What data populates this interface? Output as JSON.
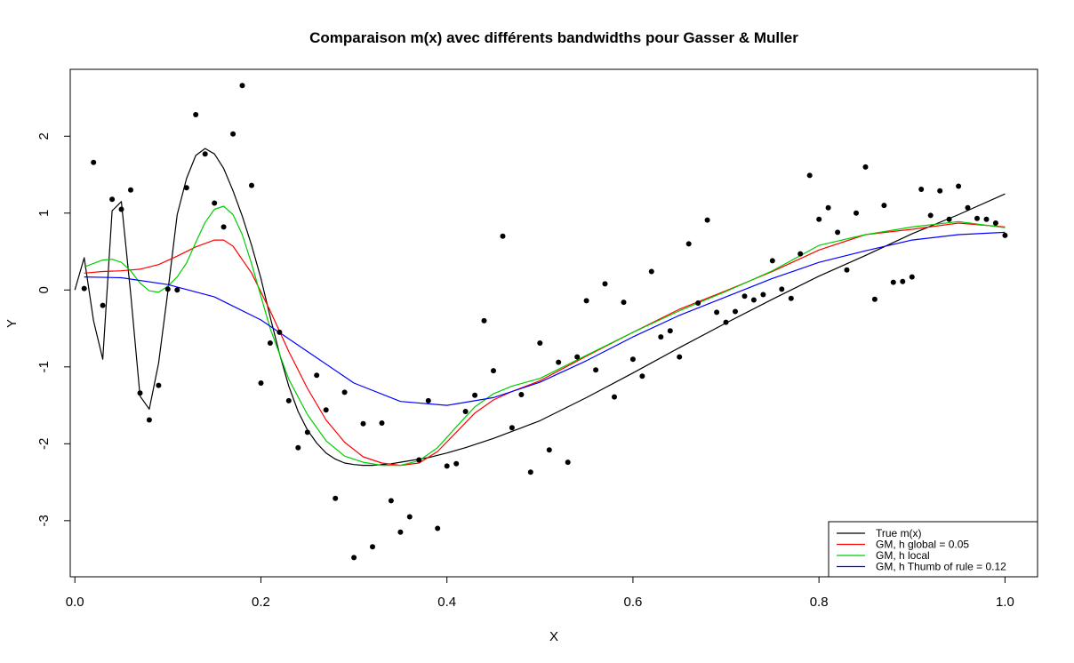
{
  "chart_data": {
    "type": "scatter",
    "title": "Comparaison m(x) avec différents bandwidths pour Gasser & Muller",
    "xlabel": "X",
    "ylabel": "Y",
    "xlim": [
      -0.005,
      1.035
    ],
    "ylim": [
      -3.73,
      2.87
    ],
    "xticks": [
      0.0,
      0.2,
      0.4,
      0.6,
      0.8,
      1.0
    ],
    "xtick_labels": [
      "0.0",
      "0.2",
      "0.4",
      "0.6",
      "0.8",
      "1.0"
    ],
    "yticks": [
      -3,
      -2,
      -1,
      0,
      1,
      2
    ],
    "ytick_labels": [
      "-3",
      "-2",
      "-1",
      "0",
      "1",
      "2"
    ],
    "grid": false,
    "legend_position": "bottom-right",
    "points": {
      "x": [
        0.01,
        0.02,
        0.03,
        0.04,
        0.05,
        0.06,
        0.07,
        0.08,
        0.09,
        0.1,
        0.11,
        0.12,
        0.13,
        0.14,
        0.15,
        0.16,
        0.17,
        0.18,
        0.19,
        0.2,
        0.21,
        0.22,
        0.23,
        0.24,
        0.25,
        0.26,
        0.27,
        0.28,
        0.29,
        0.3,
        0.31,
        0.32,
        0.33,
        0.34,
        0.35,
        0.36,
        0.37,
        0.38,
        0.39,
        0.4,
        0.41,
        0.42,
        0.43,
        0.44,
        0.45,
        0.46,
        0.47,
        0.48,
        0.49,
        0.5,
        0.51,
        0.52,
        0.53,
        0.54,
        0.55,
        0.56,
        0.57,
        0.58,
        0.59,
        0.6,
        0.61,
        0.62,
        0.63,
        0.64,
        0.65,
        0.66,
        0.67,
        0.68,
        0.69,
        0.7,
        0.71,
        0.72,
        0.73,
        0.74,
        0.75,
        0.76,
        0.77,
        0.78,
        0.79,
        0.8,
        0.81,
        0.82,
        0.83,
        0.84,
        0.85,
        0.86,
        0.87,
        0.88,
        0.89,
        0.9,
        0.91,
        0.92,
        0.93,
        0.94,
        0.95,
        0.96,
        0.97,
        0.98,
        0.99,
        1.0
      ],
      "y": [
        0.02,
        1.66,
        -0.2,
        1.18,
        1.05,
        1.3,
        -1.34,
        -1.69,
        -1.24,
        0.01,
        0.0,
        1.33,
        2.28,
        1.77,
        1.13,
        0.82,
        2.03,
        2.66,
        1.36,
        -1.21,
        -0.69,
        -0.55,
        -1.44,
        -2.05,
        -1.85,
        -1.11,
        -1.56,
        -2.71,
        -1.33,
        -3.48,
        -1.74,
        -3.34,
        -1.73,
        -2.74,
        -3.15,
        -2.95,
        -2.21,
        -1.44,
        -3.1,
        -2.29,
        -2.26,
        -1.58,
        -1.37,
        -0.4,
        -1.05,
        0.7,
        -1.79,
        -1.36,
        -2.37,
        -0.69,
        -2.08,
        -0.94,
        -2.24,
        -0.87,
        -0.14,
        -1.04,
        0.08,
        -1.39,
        -0.16,
        -0.9,
        -1.12,
        0.24,
        -0.61,
        -0.53,
        -0.87,
        0.6,
        -0.17,
        0.91,
        -0.29,
        -0.42,
        -0.28,
        -0.08,
        -0.13,
        -0.06,
        0.38,
        0.01,
        -0.11,
        0.47,
        1.49,
        0.92,
        1.07,
        0.75,
        0.26,
        1.0,
        1.6,
        -0.12,
        1.1,
        0.1,
        0.11,
        0.17,
        1.31,
        0.97,
        1.29,
        0.92,
        1.35,
        1.07,
        0.93,
        0.92,
        0.87,
        0.71
      ]
    },
    "series": [
      {
        "name": "True m(x)",
        "color": "#000000",
        "x": [
          0.0,
          0.01,
          0.02,
          0.03,
          0.04,
          0.05,
          0.06,
          0.07,
          0.08,
          0.09,
          0.1,
          0.11,
          0.12,
          0.13,
          0.14,
          0.15,
          0.16,
          0.17,
          0.18,
          0.19,
          0.2,
          0.21,
          0.22,
          0.23,
          0.24,
          0.25,
          0.26,
          0.27,
          0.28,
          0.29,
          0.3,
          0.31,
          0.32,
          0.33,
          0.34,
          0.35,
          0.36,
          0.37,
          0.38,
          0.39,
          0.4,
          0.42,
          0.45,
          0.5,
          0.55,
          0.6,
          0.65,
          0.7,
          0.75,
          0.8,
          0.85,
          0.9,
          0.95,
          1.0
        ],
        "y": [
          0.0,
          0.42,
          -0.4,
          -0.9,
          1.03,
          1.15,
          -0.05,
          -1.38,
          -1.55,
          -0.95,
          -0.02,
          0.98,
          1.45,
          1.75,
          1.84,
          1.77,
          1.58,
          1.29,
          0.96,
          0.58,
          0.15,
          -0.35,
          -0.83,
          -1.25,
          -1.58,
          -1.82,
          -1.99,
          -2.12,
          -2.2,
          -2.25,
          -2.27,
          -2.28,
          -2.28,
          -2.27,
          -2.26,
          -2.24,
          -2.22,
          -2.2,
          -2.18,
          -2.15,
          -2.12,
          -2.05,
          -1.93,
          -1.7,
          -1.4,
          -1.08,
          -0.75,
          -0.43,
          -0.12,
          0.18,
          0.45,
          0.73,
          0.98,
          1.25
        ]
      },
      {
        "name": "GM, h global = 0.05",
        "color": "#ff0000",
        "x": [
          0.01,
          0.03,
          0.05,
          0.07,
          0.09,
          0.11,
          0.13,
          0.15,
          0.16,
          0.17,
          0.19,
          0.21,
          0.23,
          0.25,
          0.27,
          0.29,
          0.31,
          0.33,
          0.35,
          0.37,
          0.39,
          0.41,
          0.43,
          0.45,
          0.47,
          0.5,
          0.55,
          0.6,
          0.65,
          0.7,
          0.75,
          0.8,
          0.85,
          0.9,
          0.95,
          1.0
        ],
        "y": [
          0.22,
          0.24,
          0.25,
          0.27,
          0.33,
          0.44,
          0.56,
          0.65,
          0.65,
          0.57,
          0.22,
          -0.27,
          -0.8,
          -1.28,
          -1.69,
          -1.98,
          -2.17,
          -2.25,
          -2.28,
          -2.25,
          -2.1,
          -1.85,
          -1.6,
          -1.43,
          -1.32,
          -1.18,
          -0.86,
          -0.55,
          -0.25,
          -0.01,
          0.24,
          0.52,
          0.72,
          0.79,
          0.87,
          0.82
        ]
      },
      {
        "name": "GM, h local",
        "color": "#00cd00",
        "x": [
          0.01,
          0.03,
          0.04,
          0.05,
          0.06,
          0.07,
          0.08,
          0.09,
          0.1,
          0.11,
          0.12,
          0.13,
          0.14,
          0.15,
          0.16,
          0.17,
          0.18,
          0.19,
          0.21,
          0.23,
          0.25,
          0.27,
          0.29,
          0.31,
          0.33,
          0.35,
          0.37,
          0.39,
          0.41,
          0.43,
          0.45,
          0.47,
          0.5,
          0.55,
          0.6,
          0.65,
          0.7,
          0.75,
          0.8,
          0.85,
          0.9,
          0.95,
          1.0
        ],
        "y": [
          0.3,
          0.39,
          0.4,
          0.36,
          0.25,
          0.09,
          -0.01,
          -0.03,
          0.05,
          0.17,
          0.35,
          0.62,
          0.88,
          1.05,
          1.09,
          0.98,
          0.72,
          0.34,
          -0.5,
          -1.16,
          -1.62,
          -1.96,
          -2.16,
          -2.24,
          -2.28,
          -2.28,
          -2.22,
          -2.05,
          -1.78,
          -1.52,
          -1.35,
          -1.25,
          -1.15,
          -0.85,
          -0.55,
          -0.27,
          -0.02,
          0.25,
          0.58,
          0.72,
          0.82,
          0.89,
          0.81
        ]
      },
      {
        "name": "GM, h Thumb of rule = 0.12",
        "color": "#0000ff",
        "x": [
          0.01,
          0.05,
          0.1,
          0.15,
          0.2,
          0.25,
          0.3,
          0.35,
          0.4,
          0.45,
          0.5,
          0.55,
          0.6,
          0.65,
          0.7,
          0.75,
          0.8,
          0.85,
          0.9,
          0.95,
          1.0
        ],
        "y": [
          0.17,
          0.16,
          0.07,
          -0.09,
          -0.39,
          -0.8,
          -1.21,
          -1.45,
          -1.5,
          -1.4,
          -1.2,
          -0.92,
          -0.61,
          -0.33,
          -0.09,
          0.15,
          0.36,
          0.51,
          0.65,
          0.72,
          0.75
        ]
      }
    ]
  }
}
